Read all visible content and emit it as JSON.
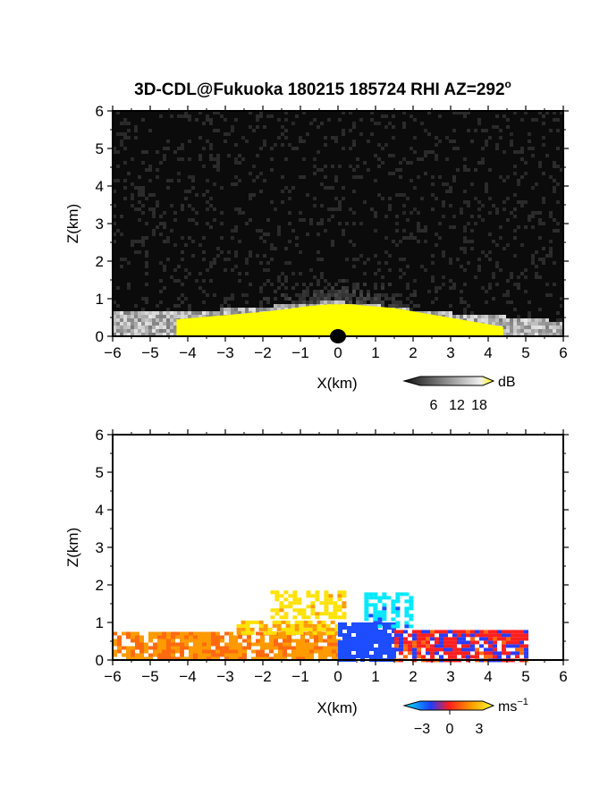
{
  "title": "3D-CDL@Fukuoka 180215 185724 RHI AZ=292",
  "title_sup": "o",
  "colors": {
    "background_low": "#0a0a0a",
    "saturation": "#ffff00",
    "velocity_neg": "#1e3cff",
    "velocity_cyan": "#00e0ff",
    "velocity_zero": "#ff1e1e",
    "velocity_pos": "#ffe800"
  },
  "chart_data": [
    {
      "type": "heatmap",
      "panel": "top",
      "variable": "backscatter",
      "xlabel": "X(km)",
      "ylabel": "Z(km)",
      "xlim": [
        -6,
        6
      ],
      "ylim": [
        0,
        6
      ],
      "xticks": [
        -6,
        -5,
        -4,
        -3,
        -2,
        -1,
        0,
        1,
        2,
        3,
        4,
        5,
        6
      ],
      "yticks": [
        0,
        1,
        2,
        3,
        4,
        5,
        6
      ],
      "grid": false,
      "colorbar": {
        "unit": "dB",
        "ticks": [
          6,
          12,
          18
        ],
        "colormap": "grayscale to yellow"
      },
      "layer_top_km": [
        0.65,
        0.66,
        0.67,
        0.68,
        0.7,
        0.72,
        0.75,
        0.8,
        0.85,
        0.9,
        0.92,
        0.88,
        0.8,
        0.72,
        0.68,
        0.62,
        0.58,
        0.55,
        0.5,
        0.45,
        0.4
      ],
      "saturated_top_km": [
        0.45,
        0.5,
        0.55,
        0.6,
        0.65,
        0.72,
        0.8,
        0.85,
        0.85,
        0.8,
        0.75,
        0.65,
        0.55,
        0.45,
        0.35,
        0.25
      ]
    },
    {
      "type": "heatmap",
      "panel": "bottom",
      "variable": "radial velocity",
      "xlabel": "X(km)",
      "ylabel": "Z(km)",
      "xlim": [
        -6,
        6
      ],
      "ylim": [
        0,
        6
      ],
      "xticks": [
        -6,
        -5,
        -4,
        -3,
        -2,
        -1,
        0,
        1,
        2,
        3,
        4,
        5,
        6
      ],
      "yticks": [
        0,
        1,
        2,
        3,
        4,
        5,
        6
      ],
      "grid": false,
      "colorbar": {
        "unit": "ms",
        "unit_sup": "−1",
        "ticks": [
          "−3",
          "0",
          "3"
        ],
        "colormap": "cyan-blue-red-yellow"
      },
      "regions": [
        {
          "x": [
            -6.0,
            0.0
          ],
          "z": [
            0.0,
            0.75
          ],
          "velocity_ms": 2.0
        },
        {
          "x": [
            -2.7,
            0.0
          ],
          "z": [
            0.75,
            1.05
          ],
          "velocity_ms": 3.0
        },
        {
          "x": [
            -1.8,
            0.2
          ],
          "z": [
            1.1,
            1.85
          ],
          "velocity_ms": 3.5
        },
        {
          "x": [
            0.0,
            1.5
          ],
          "z": [
            0.0,
            1.0
          ],
          "velocity_ms": -2.0
        },
        {
          "x": [
            1.5,
            5.0
          ],
          "z": [
            0.0,
            0.8
          ],
          "velocity_ms": 0.0
        },
        {
          "x": [
            0.7,
            2.0
          ],
          "z": [
            0.9,
            1.8
          ],
          "velocity_ms": -3.5
        }
      ]
    }
  ]
}
